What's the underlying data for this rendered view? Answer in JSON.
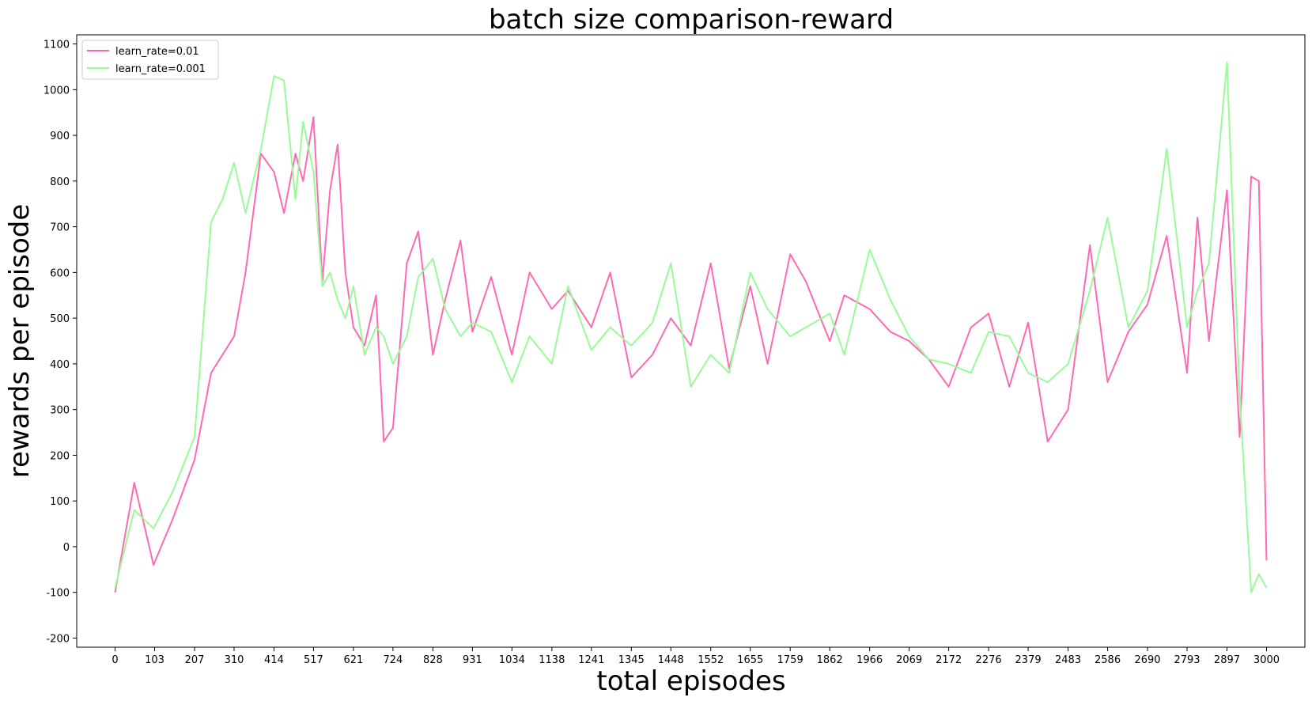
{
  "chart_data": {
    "type": "line",
    "title": "batch size comparison-reward",
    "xlabel": "total episodes",
    "ylabel": "rewards per episode",
    "xlim": [
      -100,
      3100
    ],
    "ylim": [
      -220,
      1120
    ],
    "x_ticks": [
      0,
      103,
      207,
      310,
      414,
      517,
      621,
      724,
      828,
      931,
      1034,
      1138,
      1241,
      1345,
      1448,
      1552,
      1655,
      1759,
      1862,
      1966,
      2069,
      2172,
      2276,
      2379,
      2483,
      2586,
      2690,
      2793,
      2897,
      3000
    ],
    "y_ticks": [
      -200,
      -100,
      0,
      100,
      200,
      300,
      400,
      500,
      600,
      700,
      800,
      900,
      1000,
      1100
    ],
    "legend_position": "upper-left",
    "grid": false,
    "series": [
      {
        "name": "learn_rate=0.01",
        "color": "#ff69b4",
        "x": [
          0,
          50,
          100,
          150,
          207,
          250,
          280,
          310,
          340,
          380,
          414,
          440,
          470,
          490,
          517,
          540,
          560,
          580,
          600,
          621,
          650,
          680,
          700,
          724,
          760,
          790,
          828,
          860,
          900,
          931,
          980,
          1034,
          1080,
          1138,
          1180,
          1241,
          1290,
          1345,
          1400,
          1448,
          1500,
          1552,
          1600,
          1655,
          1700,
          1759,
          1800,
          1862,
          1900,
          1966,
          2020,
          2069,
          2120,
          2172,
          2230,
          2276,
          2330,
          2379,
          2430,
          2483,
          2540,
          2586,
          2640,
          2690,
          2740,
          2793,
          2820,
          2850,
          2897,
          2930,
          2960,
          2980,
          3000
        ],
        "y": [
          -100,
          140,
          -40,
          60,
          190,
          380,
          420,
          460,
          600,
          860,
          820,
          730,
          860,
          800,
          940,
          580,
          780,
          880,
          600,
          480,
          440,
          550,
          230,
          260,
          620,
          690,
          420,
          540,
          670,
          470,
          590,
          420,
          600,
          520,
          560,
          480,
          600,
          370,
          420,
          500,
          440,
          620,
          390,
          570,
          400,
          640,
          580,
          450,
          550,
          520,
          470,
          450,
          410,
          350,
          480,
          510,
          350,
          490,
          230,
          300,
          660,
          360,
          470,
          530,
          680,
          380,
          720,
          450,
          780,
          240,
          810,
          800,
          -30
        ]
      },
      {
        "name": "learn_rate=0.001",
        "color": "#98fb98",
        "x": [
          0,
          50,
          100,
          150,
          207,
          250,
          280,
          310,
          340,
          380,
          414,
          440,
          470,
          490,
          517,
          540,
          560,
          580,
          600,
          621,
          650,
          680,
          700,
          724,
          760,
          790,
          828,
          860,
          900,
          931,
          980,
          1034,
          1080,
          1138,
          1180,
          1241,
          1290,
          1345,
          1400,
          1448,
          1500,
          1552,
          1600,
          1655,
          1700,
          1759,
          1800,
          1862,
          1900,
          1966,
          2020,
          2069,
          2120,
          2172,
          2230,
          2276,
          2330,
          2379,
          2430,
          2483,
          2540,
          2586,
          2640,
          2690,
          2740,
          2793,
          2820,
          2850,
          2897,
          2930,
          2960,
          2980,
          3000
        ],
        "y": [
          -90,
          80,
          40,
          120,
          240,
          710,
          760,
          840,
          730,
          870,
          1030,
          1020,
          760,
          930,
          820,
          570,
          600,
          540,
          500,
          570,
          420,
          480,
          460,
          400,
          460,
          590,
          630,
          520,
          460,
          490,
          470,
          360,
          460,
          400,
          570,
          430,
          480,
          440,
          490,
          620,
          350,
          420,
          380,
          600,
          520,
          460,
          480,
          510,
          420,
          650,
          540,
          460,
          410,
          400,
          380,
          470,
          460,
          380,
          360,
          400,
          560,
          720,
          480,
          560,
          870,
          480,
          560,
          620,
          1060,
          330,
          -100,
          -60,
          -90
        ]
      }
    ]
  }
}
